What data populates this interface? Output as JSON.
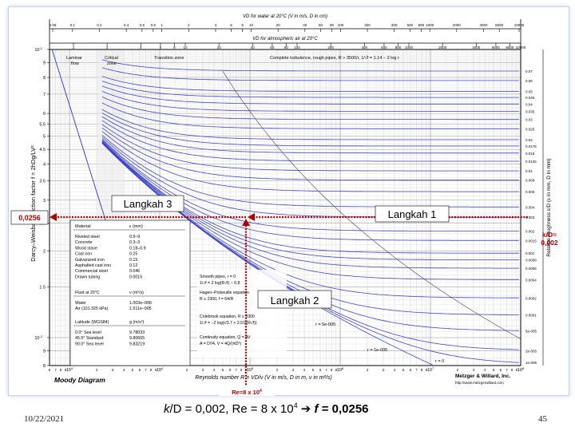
{
  "slide": {
    "date": "10/22/2021",
    "page_number": "45",
    "caption_k": "k",
    "caption_rest": "/D = 0,002, Re = 8 x 10",
    "caption_exp": "4",
    "caption_arrow": "➔",
    "caption_f": "f",
    "caption_result": " = 0,0256"
  },
  "chart_data": {
    "type": "line",
    "title": "Moody Diagram",
    "publisher": "Metzger & Willard, Inc.",
    "publisher_url": "http://www.metzgerwillard.com",
    "top_axis_1": "VD for water at 20°C (V in m/s, D in cm)",
    "top_axis_1_ticks": [
      "0.06",
      "0.1",
      "0.2",
      "0.4",
      "0.6",
      "0.8",
      "1",
      "2",
      "4",
      "6",
      "8",
      "10",
      "20",
      "40",
      "60",
      "80",
      "100",
      "200",
      "400",
      "600",
      "800",
      "1000",
      "2000",
      "4000",
      "6000",
      "10000"
    ],
    "top_axis_2": "VD for atmospheric air at 20°C",
    "top_axis_2_ticks": [
      "1",
      "2",
      "4",
      "6",
      "8",
      "10",
      "20",
      "40",
      "60",
      "80",
      "100",
      "200",
      "400",
      "600",
      "800",
      "1000",
      "2000",
      "4000",
      "6000",
      "8000",
      "10000"
    ],
    "ylabel": "Darcy–Weisbach friction factor  f = 2hDg/LV²",
    "right_label": "Relative roughness  ε/D  (ε in mm, D in mm)",
    "xlabel": "Reynolds number  R = VD/ν   (V in m/s, D in m, ν in m²/s)",
    "xlim": [
      600,
      100000000
    ],
    "ylim": [
      0.008,
      0.1
    ],
    "x_log": true,
    "y_log": true,
    "grid": true,
    "y_major_ticks": [
      {
        "label": "10",
        "sup": "-1",
        "value": 0.1
      },
      {
        "label": "9",
        "value": 0.09
      },
      {
        "label": "8",
        "value": 0.08
      },
      {
        "label": "7",
        "value": 0.07
      },
      {
        "label": "6",
        "value": 0.06
      },
      {
        "label": "5.5",
        "value": 0.055
      },
      {
        "label": "5",
        "value": 0.05
      },
      {
        "label": "4.5",
        "value": 0.045
      },
      {
        "label": "4",
        "value": 0.04
      },
      {
        "label": "3.5",
        "value": 0.035
      },
      {
        "label": "3",
        "value": 0.03
      },
      {
        "label": "2.5",
        "value": 0.025
      },
      {
        "label": "2",
        "value": 0.02
      },
      {
        "label": "1.5",
        "value": 0.015
      },
      {
        "label": "10",
        "sup": "-2",
        "value": 0.01
      },
      {
        "label": "9",
        "value": 0.009
      },
      {
        "label": "8",
        "value": 0.008
      }
    ],
    "x_decades": [
      {
        "label": "10",
        "sup": "3",
        "value": 1000
      },
      {
        "label": "10",
        "sup": "4",
        "value": 10000
      },
      {
        "label": "10",
        "sup": "5",
        "value": 100000
      },
      {
        "label": "10",
        "sup": "6",
        "value": 1000000
      },
      {
        "label": "10",
        "sup": "7",
        "value": 10000000
      },
      {
        "label": "10",
        "sup": "8",
        "value": 100000000
      }
    ],
    "x_minor_labels": [
      "6",
      "7",
      "8",
      "9",
      "2",
      "3",
      "4",
      "5",
      "6",
      "7",
      "8",
      "9"
    ],
    "relative_roughness": [
      {
        "label": "0.07",
        "value": 0.07
      },
      {
        "label": "0.06",
        "value": 0.06
      },
      {
        "label": "0.05",
        "value": 0.05
      },
      {
        "label": "0.045",
        "value": 0.045
      },
      {
        "label": "0.04",
        "value": 0.04
      },
      {
        "label": "0.035",
        "value": 0.035
      },
      {
        "label": "0.03",
        "value": 0.03
      },
      {
        "label": "0.025",
        "value": 0.025
      },
      {
        "label": "0.02",
        "value": 0.02
      },
      {
        "label": "0.0175",
        "value": 0.0175
      },
      {
        "label": "0.015",
        "value": 0.015
      },
      {
        "label": "0.0125",
        "value": 0.0125
      },
      {
        "label": "0.01",
        "value": 0.01
      },
      {
        "label": "0.008",
        "value": 0.008
      },
      {
        "label": "0.006",
        "value": 0.006
      },
      {
        "label": "0.004",
        "value": 0.004
      },
      {
        "label": "0.003",
        "value": 0.003
      },
      {
        "label": "0.002",
        "value": 0.002
      },
      {
        "label": "0.0015",
        "value": 0.0015
      },
      {
        "label": "0.001",
        "value": 0.001
      },
      {
        "label": "0.0008",
        "value": 0.0008
      },
      {
        "label": "0.0006",
        "value": 0.0006
      },
      {
        "label": "0.0004",
        "value": 0.0004
      },
      {
        "label": "0.0002",
        "value": 0.0002
      },
      {
        "label": "0.0001",
        "value": 0.0001
      },
      {
        "label": "5e-005",
        "value": 5e-05
      },
      {
        "label": "2e-005",
        "value": 2e-05
      },
      {
        "label": "1e-005",
        "value": 1e-05
      }
    ],
    "zones": {
      "laminar": "Laminar flow",
      "critical": "Critical zone",
      "transition": "Transition zone",
      "complete": "Complete turbulence, rough pipes, R > 3500/r, 1/√f = 1.14 − 2 log r"
    },
    "curve_labels": [
      "r = 5e-005",
      "r = 1e-005",
      "r = 0"
    ],
    "material_table": {
      "header_material": "Material",
      "header_eps": "ε (mm)",
      "rows": [
        [
          "Riveted steel",
          "0.9–9"
        ],
        [
          "Concrete",
          "0.3–3"
        ],
        [
          "Wood stave",
          "0.18–0.9"
        ],
        [
          "Cast iron",
          "0.25"
        ],
        [
          "Galvanized iron",
          "0.15"
        ],
        [
          "Asphalted cast iron",
          "0.12"
        ],
        [
          "Commercial steel",
          "0.046"
        ],
        [
          "Drawn tubing",
          "0.0015"
        ]
      ],
      "fluid_header": "Fluid at 20°C",
      "fluid_header_nu": "ν (m²/s)",
      "fluids": [
        [
          "Water",
          "1.003e–006"
        ],
        [
          "Air (101.325 kPa)",
          "1.511e–005"
        ]
      ],
      "lat_header": "Latitude (WGS84)",
      "lat_header_g": "g (m/s²)",
      "lat_rows": [
        [
          "0.0°  Sea level",
          "9.78033"
        ],
        [
          "45.5°  Standard",
          "9.80665"
        ],
        [
          "90.0°  Sea level",
          "9.83219"
        ]
      ]
    },
    "equations": [
      "Smooth pipes, r = 0",
      "1/√f = 2 log(R√f) − 0.8",
      "Hagen–Poiseuille equation",
      "R ≤ 2300,  f = 64/R",
      "Colebrook equation, R ≥ 2300",
      "1/√f = −2 log(r/3.7 + 2.51/(R√f))",
      "Continuity equation, Q = AV",
      "A = D²/4,  V = 4Q/(πD²)"
    ],
    "annotations": {
      "step1": "Langkah 1",
      "step2": "Langkah 2",
      "step3": "Langkah 3",
      "f_value": "0,0256",
      "kd_label": "k/D=",
      "kd_value": "0,002",
      "re_label": "Re=8 x 10",
      "re_sup": "4"
    },
    "colors": {
      "curves": "#3e46c8",
      "grid": "#bbbbbb",
      "annotation": "#b00000",
      "frame": "#000000"
    }
  }
}
